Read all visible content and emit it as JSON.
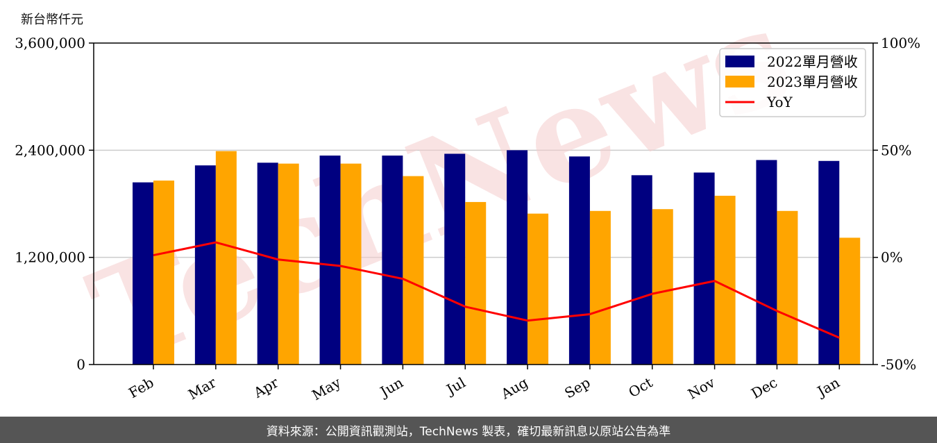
{
  "unit_label": "新台幣仟元",
  "footer": "資料來源：公開資訊觀測站，TechNews 製表，確切最新訊息以原站公告為準",
  "watermark": "TechNews",
  "colors": {
    "bar_2022": "#000080",
    "bar_2023": "#FFA500",
    "yoy_line": "#FF0000",
    "grid": "#cccccc",
    "footer_bg": "#555555",
    "watermark": "#f4cccc"
  },
  "chart_data": {
    "type": "bar",
    "categories": [
      "Feb",
      "Mar",
      "Apr",
      "May",
      "Jun",
      "Jul",
      "Aug",
      "Sep",
      "Oct",
      "Nov",
      "Dec",
      "Jan"
    ],
    "series": [
      {
        "name": "2022單月營收",
        "type": "bar",
        "axis": "left",
        "values": [
          2040000,
          2230000,
          2260000,
          2340000,
          2340000,
          2360000,
          2400000,
          2330000,
          2120000,
          2150000,
          2290000,
          2280000
        ]
      },
      {
        "name": "2023單月營收",
        "type": "bar",
        "axis": "left",
        "values": [
          2060000,
          2390000,
          2250000,
          2250000,
          2110000,
          1820000,
          1690000,
          1720000,
          1740000,
          1890000,
          1720000,
          1420000
        ]
      },
      {
        "name": "YoY",
        "type": "line",
        "axis": "right",
        "values": [
          1.0,
          7.0,
          -1.0,
          -4.0,
          -10.0,
          -23.0,
          -29.5,
          -26.5,
          -17.0,
          -11.0,
          -25.0,
          -37.5
        ]
      }
    ],
    "left_axis": {
      "ylim": [
        0,
        3600000
      ],
      "ticks": [
        "0",
        "1,200,000",
        "2,400,000",
        "3,600,000"
      ],
      "tick_values": [
        0,
        1200000,
        2400000,
        3600000
      ]
    },
    "right_axis": {
      "ylim": [
        -50,
        100
      ],
      "ticks": [
        "-50%",
        "0%",
        "50%",
        "100%"
      ],
      "tick_values": [
        -50,
        0,
        50,
        100
      ]
    },
    "grid": true,
    "legend_position": "top-right"
  }
}
